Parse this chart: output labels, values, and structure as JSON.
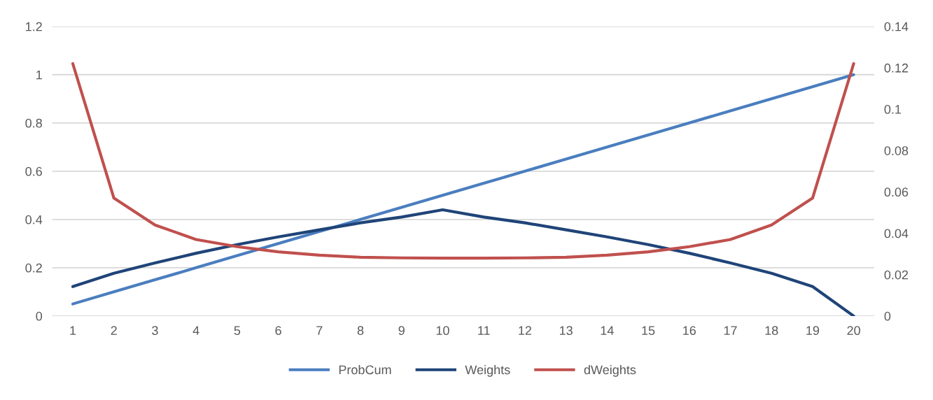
{
  "chart_data": {
    "type": "line",
    "categories": [
      "1",
      "2",
      "3",
      "4",
      "5",
      "6",
      "7",
      "8",
      "9",
      "10",
      "11",
      "12",
      "13",
      "14",
      "15",
      "16",
      "17",
      "18",
      "19",
      "20"
    ],
    "series": [
      {
        "name": "ProbCum",
        "color": "#4a7ebf",
        "values": [
          0.05,
          0.1,
          0.15,
          0.2,
          0.25,
          0.3,
          0.35,
          0.4,
          0.45,
          0.5,
          0.55,
          0.6,
          0.65,
          0.7,
          0.75,
          0.8,
          0.85,
          0.9,
          0.95,
          1.0
        ]
      },
      {
        "name": "Weights",
        "color": "#1f4478",
        "values": [
          0.122,
          0.177,
          0.22,
          0.26,
          0.296,
          0.328,
          0.357,
          0.386,
          0.41,
          0.44,
          0.41,
          0.386,
          0.357,
          0.328,
          0.296,
          0.26,
          0.22,
          0.177,
          0.122,
          0
        ]
      },
      {
        "name": "dWeights",
        "color": "#c0504d",
        "axis": "y2",
        "values": [
          0.122,
          0.057,
          0.044,
          0.037,
          0.0335,
          0.031,
          0.0294,
          0.0284,
          0.0281,
          0.028,
          0.028,
          0.0281,
          0.0284,
          0.0294,
          0.031,
          0.0335,
          0.037,
          0.044,
          0.057,
          0.122
        ]
      }
    ],
    "ylim": [
      0,
      1.2
    ],
    "yticks": [
      0,
      0.2,
      0.4,
      0.6,
      0.8,
      1,
      1.2
    ],
    "y2lim": [
      0,
      0.14
    ],
    "y2ticks": [
      0,
      0.02,
      0.04,
      0.06,
      0.08,
      0.1,
      0.12,
      0.14
    ],
    "grid": "y",
    "legend": "bottom",
    "marker": "none",
    "line_style": "solid"
  }
}
